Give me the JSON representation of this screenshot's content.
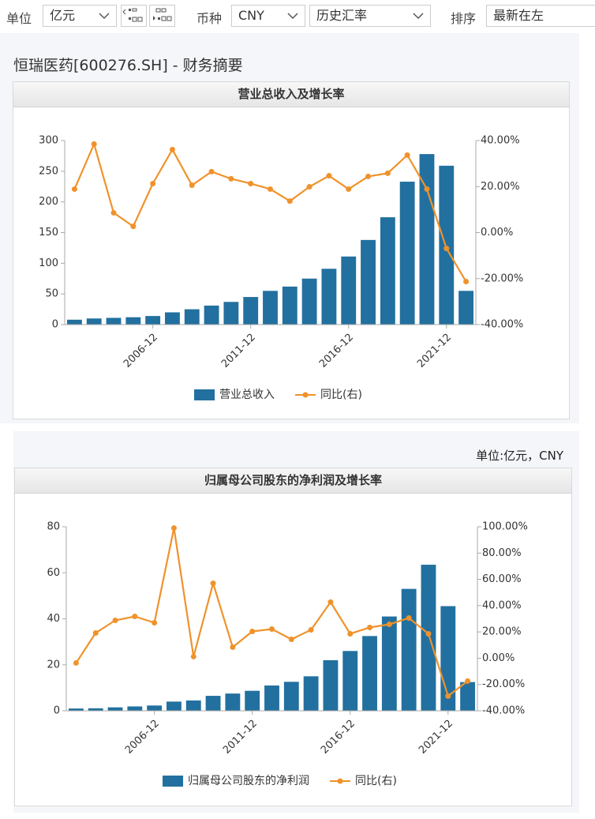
{
  "toolbar": {
    "unit_label": "单位",
    "unit_value": "亿元",
    "currency_label": "币种",
    "currency_value": "CNY",
    "rate_value": "历史汇率",
    "sort_label": "排序",
    "sort_value": "最新在左"
  },
  "page_title": "恒瑞医药[600276.SH] - 财务摘要",
  "unit_note": "单位:亿元，CNY",
  "chart_data": [
    {
      "type": "bar_line",
      "title": "营业总收入及增长率",
      "categories": [
        null,
        null,
        null,
        null,
        "2006-12",
        null,
        null,
        null,
        null,
        "2011-12",
        null,
        null,
        null,
        null,
        "2016-12",
        null,
        null,
        null,
        null,
        "2021-12",
        null
      ],
      "series": [
        {
          "name": "营业总收入",
          "color": "#22709f",
          "type": "bar",
          "values": [
            8,
            10,
            11,
            12,
            14,
            20,
            25,
            31,
            37,
            45,
            55,
            62,
            75,
            91,
            111,
            138,
            175,
            233,
            278,
            259,
            55
          ]
        },
        {
          "name": "同比(右)",
          "color": "#f0922b",
          "type": "line",
          "axis": "y2",
          "values": [
            18.9,
            38.5,
            8.6,
            2.7,
            21.3,
            36.1,
            20.6,
            26.5,
            23.4,
            21.3,
            18.9,
            13.7,
            19.9,
            24.7,
            18.9,
            24.4,
            25.8,
            33.7,
            18.9,
            -6.9,
            -21.3
          ]
        }
      ],
      "ylim": [
        0,
        300
      ],
      "yticks": [
        0,
        50,
        100,
        150,
        200,
        250,
        300
      ],
      "y2lim": [
        -40,
        40
      ],
      "y2ticks": [
        {
          "value": -40,
          "label": "-40.00%"
        },
        {
          "value": -20,
          "label": "-20.00%"
        },
        {
          "value": 0,
          "label": "0.00%"
        },
        {
          "value": 20,
          "label": "20.00%"
        },
        {
          "value": 40,
          "label": "40.00%"
        }
      ]
    },
    {
      "type": "bar_line",
      "title": "归属母公司股东的净利润及增长率",
      "categories": [
        null,
        null,
        null,
        null,
        "2006-12",
        null,
        null,
        null,
        null,
        "2011-12",
        null,
        null,
        null,
        null,
        "2016-12",
        null,
        null,
        null,
        null,
        "2021-12",
        null
      ],
      "series": [
        {
          "name": "归属母公司股东的净利润",
          "color": "#22709f",
          "type": "bar",
          "values": [
            1,
            1.1,
            1.5,
            1.9,
            2.3,
            4,
            4.5,
            6.5,
            7.5,
            8.7,
            11,
            12.6,
            15,
            22,
            26,
            32.5,
            41,
            53,
            63.5,
            45.5,
            12.5
          ]
        },
        {
          "name": "同比(右)",
          "color": "#f0922b",
          "type": "line",
          "axis": "y2",
          "values": [
            -3.6,
            19.2,
            28.8,
            31.8,
            27,
            99,
            1.2,
            57,
            8.4,
            20.4,
            22.2,
            14.4,
            21.6,
            42.7,
            18.6,
            23.4,
            25.8,
            30.6,
            18.6,
            -28.8,
            -17.4
          ]
        }
      ],
      "ylim": [
        0,
        80
      ],
      "yticks": [
        0,
        20,
        40,
        60,
        80
      ],
      "y2lim": [
        -40,
        100
      ],
      "y2ticks": [
        {
          "value": -40,
          "label": "-40.00%"
        },
        {
          "value": -20,
          "label": "-20.00%"
        },
        {
          "value": 0,
          "label": "0.00%"
        },
        {
          "value": 20,
          "label": "20.00%"
        },
        {
          "value": 40,
          "label": "40.00%"
        },
        {
          "value": 60,
          "label": "60.00%"
        },
        {
          "value": 80,
          "label": "80.00%"
        },
        {
          "value": 100,
          "label": "100.00%"
        }
      ]
    }
  ]
}
